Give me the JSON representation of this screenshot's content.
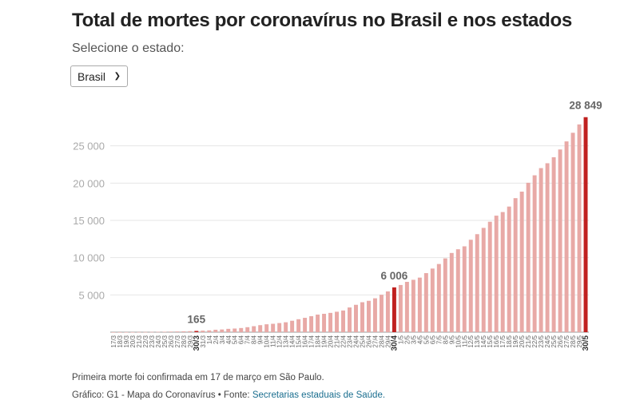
{
  "title": "Total de mortes por coronavírus no Brasil e nos estados",
  "selector": {
    "label": "Selecione o estado:",
    "selected": "Brasil"
  },
  "footer": {
    "note": "Primeira morte foi confirmada em 17 de março em São Paulo.",
    "credit_prefix": "Gráfico: G1 - Mapa do Coronavírus • Fonte: ",
    "credit_link": "Secretarias estaduais de Saúde."
  },
  "colors": {
    "bar": "#e8a9a6",
    "highlight": "#c0201f",
    "grid": "#e6e6e6",
    "tick_text": "#aaaaaa"
  },
  "chart_data": {
    "type": "bar",
    "ylim": [
      0,
      30000
    ],
    "yticks": [
      5000,
      10000,
      15000,
      20000,
      25000
    ],
    "ytick_labels": [
      "5 000",
      "10 000",
      "15 000",
      "20 000",
      "25 000"
    ],
    "grid": true,
    "categories": [
      "17/3",
      "18/3",
      "19/3",
      "20/3",
      "21/3",
      "22/3",
      "23/3",
      "24/3",
      "25/3",
      "26/3",
      "27/3",
      "28/3",
      "29/3",
      "30/3",
      "31/3",
      "1/4",
      "2/4",
      "3/4",
      "4/4",
      "5/4",
      "6/4",
      "7/4",
      "8/4",
      "9/4",
      "10/4",
      "11/4",
      "12/4",
      "13/4",
      "14/4",
      "15/4",
      "16/4",
      "17/4",
      "18/4",
      "19/4",
      "20/4",
      "21/4",
      "22/4",
      "23/4",
      "24/4",
      "25/4",
      "26/4",
      "27/4",
      "28/4",
      "29/4",
      "30/4",
      "1/5",
      "2/5",
      "3/5",
      "4/5",
      "5/5",
      "6/5",
      "7/5",
      "8/5",
      "9/5",
      "10/5",
      "11/5",
      "12/5",
      "13/5",
      "14/5",
      "15/5",
      "16/5",
      "17/5",
      "18/5",
      "19/5",
      "20/5",
      "21/5",
      "22/5",
      "23/5",
      "24/5",
      "25/5",
      "26/5",
      "27/5",
      "28/5",
      "29/5",
      "30/5"
    ],
    "values": [
      1,
      4,
      7,
      11,
      18,
      25,
      34,
      46,
      57,
      77,
      92,
      111,
      136,
      165,
      201,
      240,
      324,
      359,
      445,
      486,
      553,
      667,
      800,
      941,
      1056,
      1124,
      1223,
      1328,
      1532,
      1736,
      1924,
      2141,
      2354,
      2462,
      2587,
      2741,
      2906,
      3313,
      3670,
      4016,
      4205,
      4543,
      5017,
      5466,
      6006,
      6329,
      6750,
      7025,
      7321,
      7921,
      8536,
      9146,
      9897,
      10627,
      11123,
      11519,
      12400,
      13149,
      13993,
      14817,
      15633,
      16118,
      16853,
      17983,
      18859,
      20047,
      21048,
      22013,
      22666,
      23473,
      24512,
      25598,
      26754,
      27878,
      28849
    ],
    "highlights": [
      {
        "category": "30/3",
        "value": 165,
        "label": "165"
      },
      {
        "category": "30/4",
        "value": 6006,
        "label": "6 006"
      },
      {
        "category": "30/5",
        "value": 28849,
        "label": "28 849"
      }
    ]
  }
}
